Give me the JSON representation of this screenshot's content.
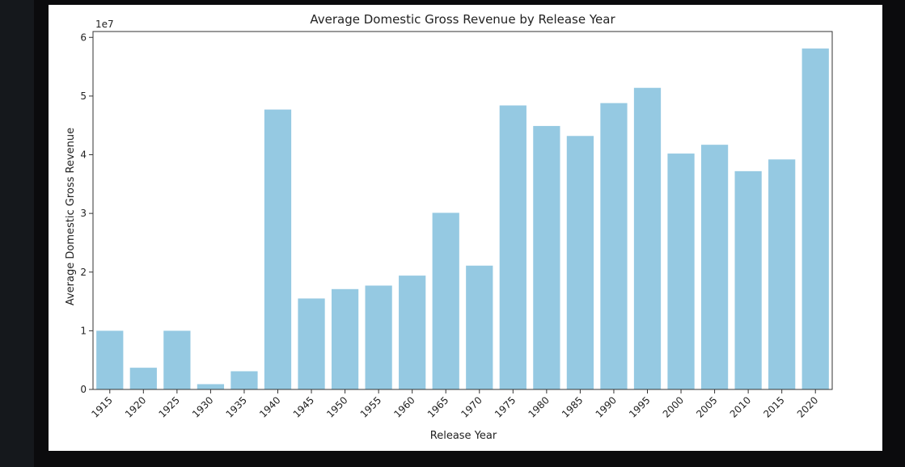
{
  "chart_data": {
    "type": "bar",
    "title": "Average Domestic Gross Revenue by Release Year",
    "xlabel": "Release Year",
    "ylabel": "Average Domestic Gross Revenue",
    "y_scale_label": "1e7",
    "categories": [
      "1915",
      "1920",
      "1925",
      "1930",
      "1935",
      "1940",
      "1945",
      "1950",
      "1955",
      "1960",
      "1965",
      "1970",
      "1975",
      "1980",
      "1985",
      "1990",
      "1995",
      "2000",
      "2005",
      "2010",
      "2015",
      "2020"
    ],
    "values": [
      10000000,
      3700000,
      10000000,
      900000,
      3100000,
      47700000,
      15500000,
      17100000,
      17700000,
      19400000,
      30100000,
      21100000,
      48400000,
      44900000,
      43200000,
      48800000,
      51400000,
      40200000,
      41700000,
      37200000,
      39200000,
      58100000
    ],
    "ylim": [
      0,
      61000000
    ],
    "yticks": [
      0,
      10000000,
      20000000,
      30000000,
      40000000,
      50000000,
      60000000
    ],
    "ytick_labels": [
      "0",
      "1",
      "2",
      "3",
      "4",
      "5",
      "6"
    ],
    "bar_color": "#95c9e2",
    "grid": false
  }
}
